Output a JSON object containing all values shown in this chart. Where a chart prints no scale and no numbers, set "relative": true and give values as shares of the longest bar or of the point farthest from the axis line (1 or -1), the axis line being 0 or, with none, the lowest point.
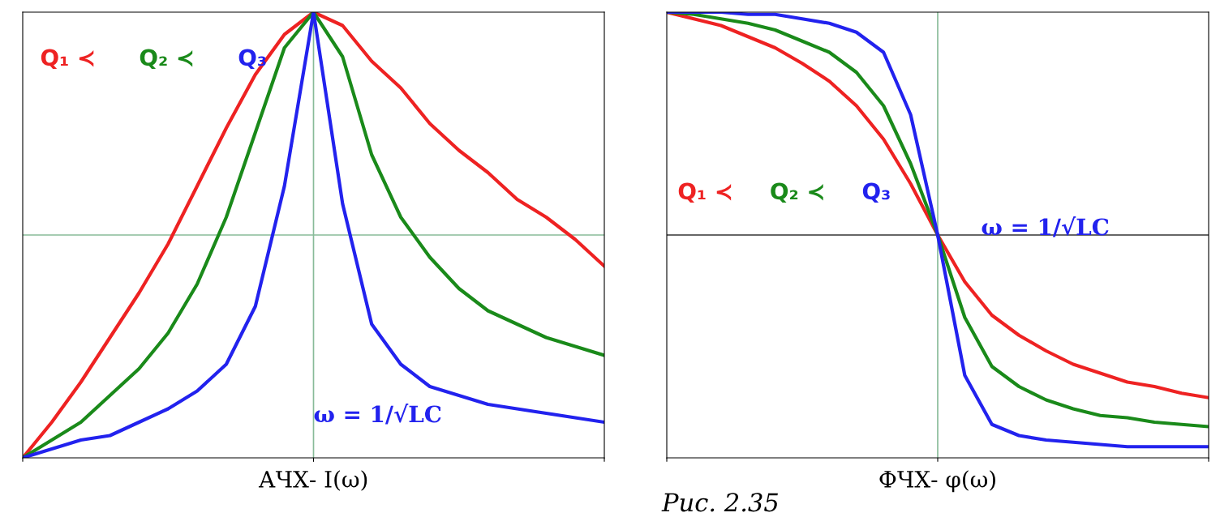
{
  "chart_data": [
    {
      "type": "line",
      "relative": true,
      "xlabel": "АЧХ- I(ω)",
      "categories": [
        null,
        null,
        null,
        null,
        null,
        null,
        null,
        null,
        null,
        null,
        null,
        null,
        null,
        null,
        null,
        null,
        null,
        null,
        null,
        null,
        null
      ],
      "series": [
        {
          "name": "Q₁ ≺",
          "color": "#ee2222",
          "values": [
            0,
            0.08,
            0.17,
            0.27,
            0.37,
            0.48,
            0.61,
            0.74,
            0.86,
            0.95,
            1,
            0.97,
            0.89,
            0.83,
            0.75,
            0.69,
            0.64,
            0.58,
            0.54,
            0.49,
            0.43
          ]
        },
        {
          "name": "Q₂ ≺",
          "color": "#1a8a1a",
          "values": [
            0,
            0.04,
            0.08,
            0.14,
            0.2,
            0.28,
            0.39,
            0.54,
            0.73,
            0.92,
            1,
            0.9,
            0.68,
            0.54,
            0.45,
            0.38,
            0.33,
            0.3,
            0.27,
            0.25,
            0.23
          ]
        },
        {
          "name": "Q₃",
          "color": "#2222ee",
          "values": [
            0,
            0.02,
            0.04,
            0.05,
            0.08,
            0.11,
            0.15,
            0.21,
            0.34,
            0.61,
            1,
            0.57,
            0.3,
            0.21,
            0.16,
            0.14,
            0.12,
            0.11,
            0.1,
            0.09,
            0.08
          ]
        }
      ],
      "ref_lines": [
        {
          "axis": "y",
          "value": 0.5,
          "color": "#88bb99"
        }
      ],
      "annotations": [
        "ω = 1/√LC",
        "Рис. 2.35"
      ],
      "grid": false,
      "legend": false
    },
    {
      "type": "line",
      "relative": true,
      "xlabel": "ФЧХ- φ(ω)",
      "categories": [
        null,
        null,
        null,
        null,
        null,
        null,
        null,
        null,
        null,
        null,
        null,
        null,
        null,
        null,
        null,
        null,
        null,
        null,
        null,
        null,
        null
      ],
      "series": [
        {
          "name": "Q₁ ≺",
          "color": "#ee2222",
          "values": [
            1,
            0.97,
            0.94,
            0.89,
            0.84,
            0.77,
            0.69,
            0.58,
            0.43,
            0.23,
            0,
            -0.21,
            -0.36,
            -0.45,
            -0.52,
            -0.58,
            -0.62,
            -0.66,
            -0.68,
            -0.71,
            -0.73
          ]
        },
        {
          "name": "Q₂ ≺",
          "color": "#1a8a1a",
          "values": [
            1,
            0.99,
            0.97,
            0.95,
            0.92,
            0.87,
            0.82,
            0.73,
            0.58,
            0.32,
            0,
            -0.37,
            -0.59,
            -0.68,
            -0.74,
            -0.78,
            -0.81,
            -0.82,
            -0.84,
            -0.85,
            -0.86
          ]
        },
        {
          "name": "Q₃",
          "color": "#2222ee",
          "values": [
            1,
            1,
            1,
            0.99,
            0.99,
            0.97,
            0.95,
            0.91,
            0.82,
            0.54,
            0,
            -0.63,
            -0.85,
            -0.9,
            -0.92,
            -0.93,
            -0.94,
            -0.95,
            -0.95,
            -0.95,
            -0.95
          ]
        }
      ],
      "ref_lines": [
        {
          "axis": "y",
          "value": 0,
          "color": "#333333"
        }
      ],
      "annotations": [
        "ω = 1/√LC"
      ],
      "grid": false,
      "legend": false
    }
  ]
}
